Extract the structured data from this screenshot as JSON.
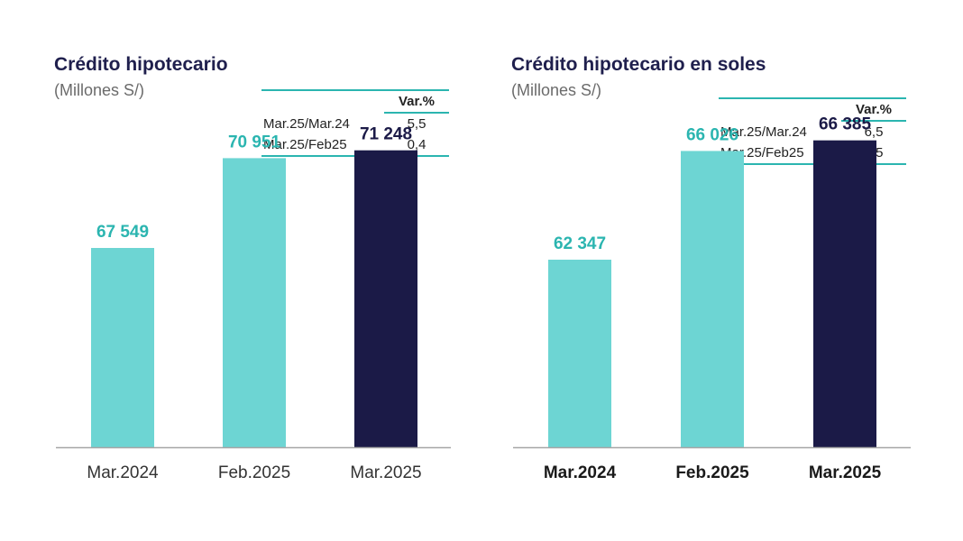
{
  "colors": {
    "light": "#6dd5d3",
    "dark": "#1b1a47",
    "label_light": "#2bb5b0",
    "label_dark": "#1b1a47",
    "axis": "#a6a6a6"
  },
  "chart_data": [
    {
      "type": "bar",
      "title": "Crédito hipotecario",
      "subtitle": "(Millones S/)",
      "categories": [
        "Mar.2024",
        "Feb.2025",
        "Mar.2025"
      ],
      "value_labels": [
        "67 549",
        "70 951",
        "71 248"
      ],
      "values": [
        67549,
        70951,
        71248
      ],
      "bar_colors": [
        "#6dd5d3",
        "#6dd5d3",
        "#1b1a47"
      ],
      "label_colors": [
        "#2bb5b0",
        "#2bb5b0",
        "#1b1a47"
      ],
      "tick_bold": false,
      "ylim": [
        0,
        80000
      ],
      "variation": {
        "header": "Var.%",
        "rows": [
          {
            "label": "Mar.25/Mar.24",
            "value": "5,5"
          },
          {
            "label": "Mar.25/Feb25",
            "value": "0,4"
          }
        ]
      }
    },
    {
      "type": "bar",
      "title": "Crédito hipotecario en soles",
      "subtitle": "(Millones S/)",
      "categories": [
        "Mar.2024",
        "Feb.2025",
        "Mar.2025"
      ],
      "value_labels": [
        "62 347",
        "66 026",
        "66 385"
      ],
      "values": [
        62347,
        66026,
        66385
      ],
      "bar_colors": [
        "#6dd5d3",
        "#6dd5d3",
        "#1b1a47"
      ],
      "label_colors": [
        "#2bb5b0",
        "#2bb5b0",
        "#1b1a47"
      ],
      "tick_bold": true,
      "ylim": [
        0,
        80000
      ],
      "variation": {
        "header": "Var.%",
        "rows": [
          {
            "label": "Mar.25/Mar.24",
            "value": "6,5"
          },
          {
            "label": "Mar.25/Feb25",
            "value": "0,5"
          }
        ]
      }
    }
  ]
}
